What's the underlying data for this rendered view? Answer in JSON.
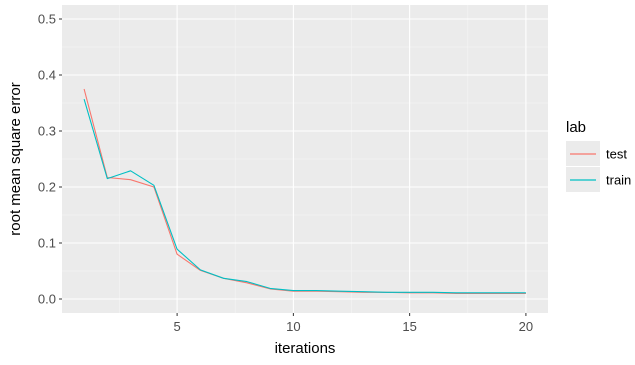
{
  "chart_data": {
    "type": "line",
    "title": "",
    "xlabel": "iterations",
    "ylabel": "root mean square error",
    "xlim": [
      0.05,
      20.95
    ],
    "ylim": [
      -0.025,
      0.525
    ],
    "x_ticks": [
      5,
      10,
      15,
      20
    ],
    "x_tick_labels": [
      "5",
      "10",
      "15",
      "20"
    ],
    "y_ticks": [
      0.0,
      0.1,
      0.2,
      0.3,
      0.4,
      0.5
    ],
    "y_tick_labels": [
      "0.0",
      "0.1",
      "0.2",
      "0.3",
      "0.4",
      "0.5"
    ],
    "grid": true,
    "background_color": "#ebebeb",
    "legend": {
      "title": "lab",
      "position": "right",
      "entries": [
        "test",
        "train"
      ]
    },
    "x": [
      1,
      2,
      3,
      4,
      5,
      6,
      7,
      8,
      9,
      10,
      11,
      12,
      13,
      14,
      15,
      16,
      17,
      18,
      19,
      20
    ],
    "series": [
      {
        "name": "test",
        "color": "#f8766d",
        "values": [
          0.375,
          0.217,
          0.213,
          0.2,
          0.08,
          0.051,
          0.037,
          0.029,
          0.018,
          0.014,
          0.014,
          0.013,
          0.012,
          0.012,
          0.011,
          0.011,
          0.01,
          0.01,
          0.01,
          0.01
        ]
      },
      {
        "name": "train",
        "color": "#00bfc4",
        "values": [
          0.357,
          0.215,
          0.229,
          0.203,
          0.089,
          0.052,
          0.037,
          0.031,
          0.019,
          0.015,
          0.015,
          0.014,
          0.013,
          0.012,
          0.012,
          0.012,
          0.011,
          0.011,
          0.011,
          0.011
        ]
      }
    ]
  }
}
